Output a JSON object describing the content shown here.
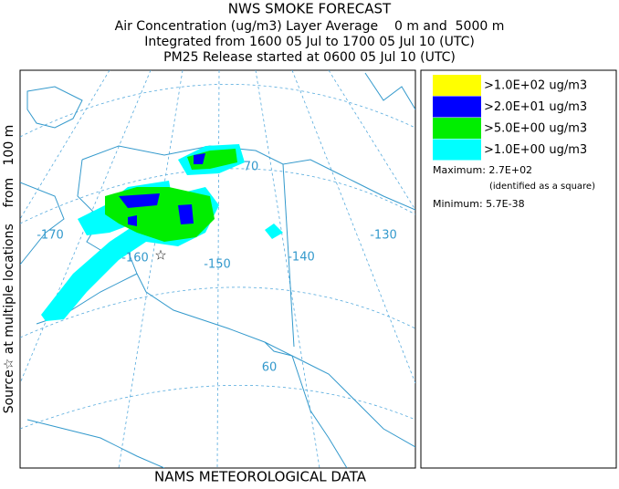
{
  "header": {
    "title": "NWS SMOKE FORECAST",
    "lines": [
      "Air Concentration (ug/m3) Layer Average    0 m and  5000 m",
      "Integrated from 1600 05 Jul to 1700 05 Jul 10 (UTC)",
      "PM25 Release started at 0600 05 Jul 10 (UTC)"
    ]
  },
  "side_label": "Source☆ at multiple locations    from   100 m",
  "footer": "NAMS METEOROLOGICAL DATA",
  "map": {
    "labels": [
      "-170",
      "-160",
      "-150",
      "-140",
      "-130",
      "70",
      "60"
    ]
  },
  "legend": {
    "items": [
      {
        "label": ">1.0E+02 ug/m3",
        "color": "#ffff00"
      },
      {
        "label": ">2.0E+01 ug/m3",
        "color": "#0000ff"
      },
      {
        "label": ">5.0E+00 ug/m3",
        "color": "#00ee00"
      },
      {
        "label": ">1.0E+00 ug/m3",
        "color": "#00ffff"
      }
    ],
    "maximum": "Maximum: 2.7E+02",
    "max_note": "(identified as a square)",
    "minimum": "Minimum: 5.7E-38"
  }
}
